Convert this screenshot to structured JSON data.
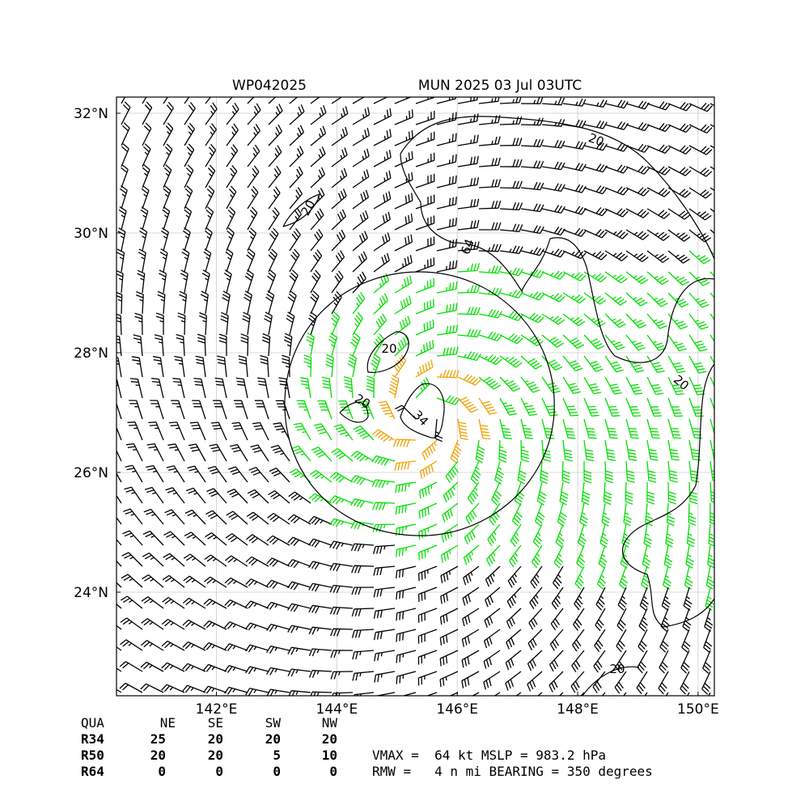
{
  "map": {
    "title_left": "WP042025",
    "title_right": "MUN 2025 03 Jul 03UTC",
    "xlim": [
      140.34,
      150.27
    ],
    "ylim": [
      22.27,
      32.27
    ],
    "xticks": [
      {
        "value": 142,
        "label": "142°E"
      },
      {
        "value": 144,
        "label": "144°E"
      },
      {
        "value": 146,
        "label": "146°E"
      },
      {
        "value": 148,
        "label": "148°E"
      },
      {
        "value": 150,
        "label": "150°E"
      }
    ],
    "yticks": [
      {
        "value": 24,
        "label": "24°N"
      },
      {
        "value": 26,
        "label": "26°N"
      },
      {
        "value": 28,
        "label": "28°N"
      },
      {
        "value": 30,
        "label": "30°N"
      },
      {
        "value": 32,
        "label": "32°N"
      }
    ],
    "grid": true,
    "contour_labels": [
      20,
      20,
      64,
      20,
      20,
      34,
      20,
      20
    ]
  },
  "table": {
    "header": [
      "QUA",
      "NE",
      "SE",
      "SW",
      "NW"
    ],
    "rows": [
      [
        "R34",
        "25",
        "20",
        "20",
        "20"
      ],
      [
        "R50",
        "20",
        "20",
        "5",
        "10"
      ],
      [
        "R64",
        "0",
        "0",
        "0",
        "0"
      ]
    ]
  },
  "stats": [
    "VMAX =  64 kt MSLP = 983.2 hPa",
    "RMW =   4 n mi BEARING = 350 degrees"
  ]
}
